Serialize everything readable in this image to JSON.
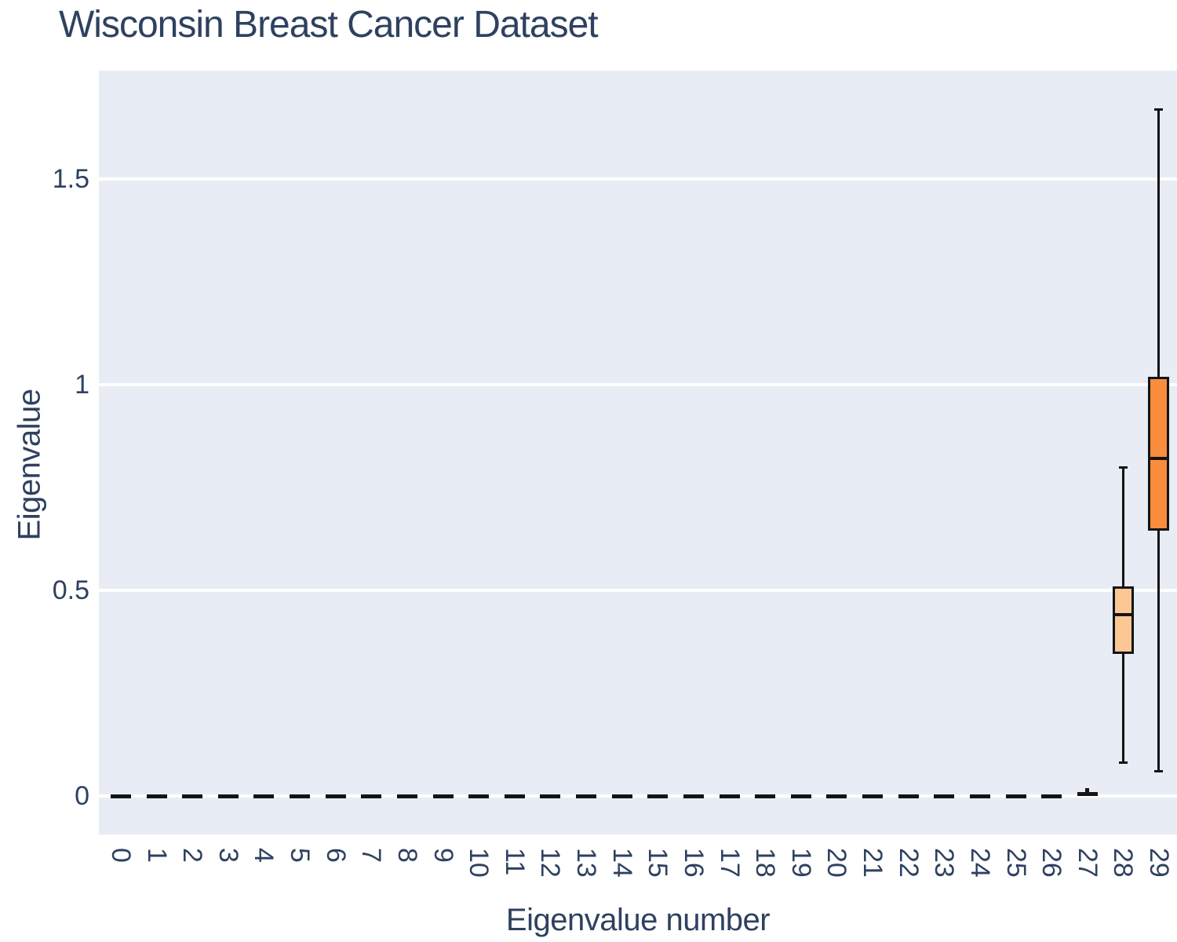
{
  "page": {
    "title": "Wisconsin Breast Cancer Dataset"
  },
  "colors": {
    "text": "#2e4160",
    "plot_background": "#e7ecf5",
    "gridline": "#ffffff",
    "box_edge": "#141414",
    "box_28_fill": "#fcc795",
    "box_29_fill": "#fa8c3d"
  },
  "chart_data": {
    "type": "box",
    "title": "Wisconsin Breast Cancer Dataset",
    "xlabel": "Eigenvalue number",
    "ylabel": "Eigenvalue",
    "legend": "none",
    "grid": "horizontal white gridlines on light blue-grey panel",
    "categories": [
      "0",
      "1",
      "2",
      "3",
      "4",
      "5",
      "6",
      "7",
      "8",
      "9",
      "10",
      "11",
      "12",
      "13",
      "14",
      "15",
      "16",
      "17",
      "18",
      "19",
      "20",
      "21",
      "22",
      "23",
      "24",
      "25",
      "26",
      "27",
      "28",
      "29"
    ],
    "y_ticks": [
      "0",
      "0.5",
      "1",
      "1.5"
    ],
    "y_tick_values": [
      0,
      0.5,
      1,
      1.5
    ],
    "ylim": [
      -0.09,
      1.76
    ],
    "boxes": [
      {
        "category": "0",
        "low": 0,
        "q1": 0,
        "median": 0,
        "q3": 0,
        "high": 0
      },
      {
        "category": "1",
        "low": 0,
        "q1": 0,
        "median": 0,
        "q3": 0,
        "high": 0
      },
      {
        "category": "2",
        "low": 0,
        "q1": 0,
        "median": 0,
        "q3": 0,
        "high": 0
      },
      {
        "category": "3",
        "low": 0,
        "q1": 0,
        "median": 0,
        "q3": 0,
        "high": 0
      },
      {
        "category": "4",
        "low": 0,
        "q1": 0,
        "median": 0,
        "q3": 0,
        "high": 0
      },
      {
        "category": "5",
        "low": 0,
        "q1": 0,
        "median": 0,
        "q3": 0,
        "high": 0
      },
      {
        "category": "6",
        "low": 0,
        "q1": 0,
        "median": 0,
        "q3": 0,
        "high": 0
      },
      {
        "category": "7",
        "low": 0,
        "q1": 0,
        "median": 0,
        "q3": 0,
        "high": 0
      },
      {
        "category": "8",
        "low": 0,
        "q1": 0,
        "median": 0,
        "q3": 0,
        "high": 0
      },
      {
        "category": "9",
        "low": 0,
        "q1": 0,
        "median": 0,
        "q3": 0,
        "high": 0
      },
      {
        "category": "10",
        "low": 0,
        "q1": 0,
        "median": 0,
        "q3": 0,
        "high": 0
      },
      {
        "category": "11",
        "low": 0,
        "q1": 0,
        "median": 0,
        "q3": 0,
        "high": 0
      },
      {
        "category": "12",
        "low": 0,
        "q1": 0,
        "median": 0,
        "q3": 0,
        "high": 0
      },
      {
        "category": "13",
        "low": 0,
        "q1": 0,
        "median": 0,
        "q3": 0,
        "high": 0
      },
      {
        "category": "14",
        "low": 0,
        "q1": 0,
        "median": 0,
        "q3": 0,
        "high": 0
      },
      {
        "category": "15",
        "low": 0,
        "q1": 0,
        "median": 0,
        "q3": 0,
        "high": 0
      },
      {
        "category": "16",
        "low": 0,
        "q1": 0,
        "median": 0,
        "q3": 0,
        "high": 0
      },
      {
        "category": "17",
        "low": 0,
        "q1": 0,
        "median": 0,
        "q3": 0,
        "high": 0
      },
      {
        "category": "18",
        "low": 0,
        "q1": 0,
        "median": 0,
        "q3": 0,
        "high": 0
      },
      {
        "category": "19",
        "low": 0,
        "q1": 0,
        "median": 0,
        "q3": 0,
        "high": 0
      },
      {
        "category": "20",
        "low": 0,
        "q1": 0,
        "median": 0,
        "q3": 0,
        "high": 0
      },
      {
        "category": "21",
        "low": 0,
        "q1": 0,
        "median": 0,
        "q3": 0,
        "high": 0
      },
      {
        "category": "22",
        "low": 0,
        "q1": 0,
        "median": 0,
        "q3": 0,
        "high": 0
      },
      {
        "category": "23",
        "low": 0,
        "q1": 0,
        "median": 0,
        "q3": 0,
        "high": 0
      },
      {
        "category": "24",
        "low": 0,
        "q1": 0,
        "median": 0,
        "q3": 0,
        "high": 0
      },
      {
        "category": "25",
        "low": 0,
        "q1": 0,
        "median": 0,
        "q3": 0,
        "high": 0
      },
      {
        "category": "26",
        "low": 0,
        "q1": 0,
        "median": 0,
        "q3": 0,
        "high": 0
      },
      {
        "category": "27",
        "low": 0,
        "q1": 0,
        "median": 0.005,
        "q3": 0.01,
        "high": 0.02
      },
      {
        "category": "28",
        "low": 0.08,
        "q1": 0.345,
        "median": 0.44,
        "q3": 0.51,
        "high": 0.8,
        "color": "#fcc795"
      },
      {
        "category": "29",
        "low": 0.06,
        "q1": 0.645,
        "median": 0.82,
        "q3": 1.02,
        "high": 1.67,
        "color": "#fa8c3d"
      }
    ]
  }
}
